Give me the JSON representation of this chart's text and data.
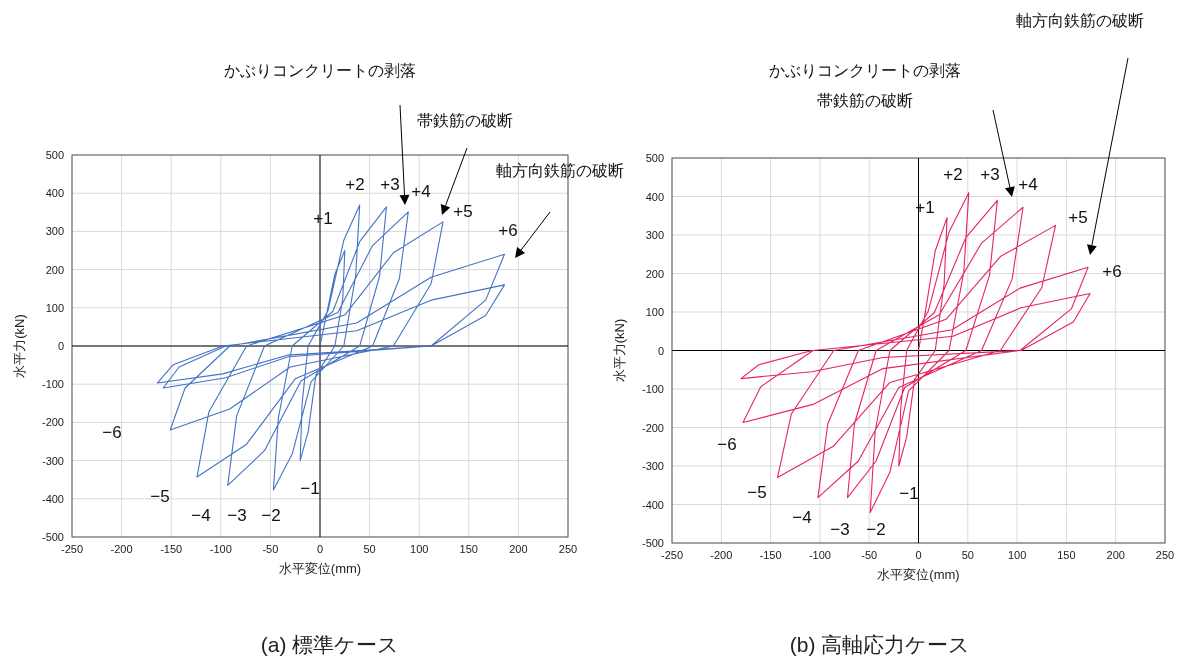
{
  "chart_data": [
    {
      "type": "line",
      "title": "(a) 標準ケース",
      "xlabel": "水平変位(mm)",
      "ylabel": "水平力(kN)",
      "xlim": [
        -250,
        250
      ],
      "ylim": [
        -500,
        500
      ],
      "xticks": [
        -250,
        -200,
        -150,
        -100,
        -50,
        0,
        50,
        100,
        150,
        200,
        250
      ],
      "yticks": [
        -500,
        -400,
        -300,
        -200,
        -100,
        0,
        100,
        200,
        300,
        400,
        500
      ],
      "grid": true,
      "marker": "none",
      "line_style": "solid",
      "series": [
        {
          "color": "#4472c4",
          "x": [
            0,
            5,
            15,
            25,
            23,
            15,
            -4,
            -12,
            -20,
            -18,
            -12,
            8,
            24,
            40,
            36,
            24,
            -9,
            -28,
            -47,
            -42,
            -28,
            13,
            40,
            67,
            60,
            40,
            -19,
            -56,
            -93,
            -84,
            -56,
            18,
            53,
            89,
            80,
            53,
            -25,
            -74,
            -124,
            -112,
            -74,
            25,
            74,
            124,
            112,
            74,
            -30,
            -91,
            -151,
            -136,
            -91,
            37,
            112,
            186,
            167,
            112,
            -33,
            -98,
            -164,
            -148,
            -98,
            37,
            112,
            186,
            167,
            112,
            -32,
            -95,
            -158,
            -142,
            -95
          ],
          "values": [
            0,
            63,
            188,
            250,
            125,
            0,
            -75,
            -225,
            -300,
            -150,
            0,
            92,
            277,
            369,
            185,
            0,
            -94,
            -283,
            -377,
            -189,
            0,
            91,
            273,
            364,
            182,
            0,
            -91,
            -274,
            -365,
            -183,
            0,
            88,
            263,
            351,
            176,
            0,
            -86,
            -257,
            -343,
            -172,
            0,
            81,
            244,
            325,
            163,
            0,
            -55,
            -165,
            -220,
            -110,
            0,
            60,
            180,
            240,
            120,
            0,
            -24,
            -73,
            -97,
            -49,
            0,
            40,
            120,
            160,
            80,
            0,
            -28,
            -83,
            -110,
            -55,
            0
          ]
        }
      ],
      "annotations": [
        "かぶりコンクリートの剥落",
        "帯鉄筋の破断",
        "軸方向鉄筋の破断",
        "+1",
        "+2",
        "+3",
        "+4",
        "+5",
        "+6",
        "−1",
        "−2",
        "−3",
        "−4",
        "−5",
        "−6"
      ]
    },
    {
      "type": "line",
      "title": "(b) 高軸応力ケース",
      "xlabel": "水平変位(mm)",
      "ylabel": "水平力(kN)",
      "xlim": [
        -250,
        250
      ],
      "ylim": [
        -500,
        500
      ],
      "xticks": [
        -250,
        -200,
        -150,
        -100,
        -50,
        0,
        50,
        100,
        150,
        200,
        250
      ],
      "yticks": [
        -500,
        -400,
        -300,
        -200,
        -100,
        0,
        100,
        200,
        300,
        400,
        500
      ],
      "grid": true,
      "marker": "none",
      "line_style": "solid",
      "series": [
        {
          "color": "#e6245e",
          "x": [
            0,
            6,
            17,
            29,
            26,
            17,
            -4,
            -12,
            -20,
            -18,
            -12,
            10,
            31,
            51,
            46,
            31,
            -10,
            -29,
            -49,
            -44,
            -29,
            16,
            48,
            80,
            72,
            48,
            -14,
            -43,
            -72,
            -65,
            -43,
            21,
            64,
            106,
            95,
            64,
            -20,
            -61,
            -102,
            -92,
            -61,
            28,
            83,
            139,
            125,
            83,
            -29,
            -86,
            -143,
            -129,
            -86,
            34,
            103,
            172,
            155,
            103,
            -36,
            -107,
            -178,
            -160,
            -107,
            35,
            104,
            174,
            157,
            104,
            -36,
            -108,
            -180,
            -162,
            -108
          ],
          "values": [
            0,
            86,
            259,
            345,
            173,
            0,
            -75,
            -225,
            -300,
            -150,
            0,
            103,
            308,
            410,
            205,
            0,
            -105,
            -316,
            -421,
            -211,
            0,
            98,
            293,
            390,
            195,
            0,
            -96,
            -287,
            -382,
            -191,
            0,
            93,
            279,
            372,
            186,
            0,
            -96,
            -287,
            -382,
            -191,
            0,
            81,
            244,
            325,
            163,
            0,
            -83,
            -248,
            -330,
            -165,
            0,
            54,
            162,
            216,
            108,
            0,
            -47,
            -140,
            -187,
            -94,
            0,
            37,
            111,
            148,
            74,
            0,
            -18,
            -55,
            -73,
            -37,
            0
          ]
        }
      ],
      "annotations": [
        "かぶりコンクリートの剥落",
        "帯鉄筋の破断",
        "軸方向鉄筋の破断",
        "+1",
        "+2",
        "+3",
        "+4",
        "+5",
        "+6",
        "−1",
        "−2",
        "−3",
        "−4",
        "−5",
        "−6"
      ]
    }
  ]
}
